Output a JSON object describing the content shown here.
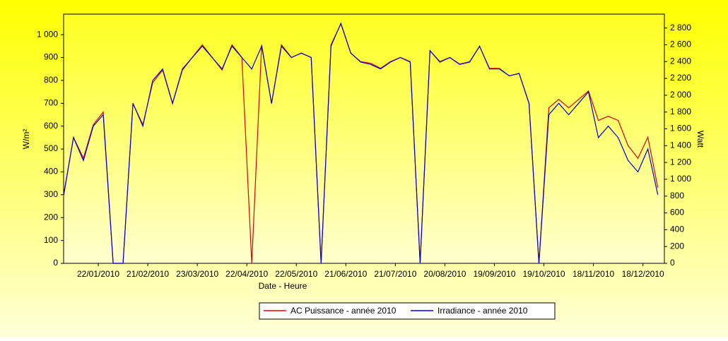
{
  "chart_data": {
    "type": "line",
    "xlabel": "Date - Heure",
    "ylabel": "W/m²",
    "y2label": "Watt",
    "x": [
      "01/01/2010",
      "07/01/2010",
      "13/01/2010",
      "19/01/2010",
      "25/01/2010",
      "31/01/2010",
      "06/02/2010",
      "12/02/2010",
      "18/02/2010",
      "24/02/2010",
      "02/03/2010",
      "08/03/2010",
      "14/03/2010",
      "20/03/2010",
      "26/03/2010",
      "01/04/2010",
      "07/04/2010",
      "13/04/2010",
      "19/04/2010",
      "25/04/2010",
      "01/05/2010",
      "07/05/2010",
      "13/05/2010",
      "19/05/2010",
      "25/05/2010",
      "31/05/2010",
      "06/06/2010",
      "12/06/2010",
      "18/06/2010",
      "24/06/2010",
      "30/06/2010",
      "06/07/2010",
      "12/07/2010",
      "18/07/2010",
      "24/07/2010",
      "30/07/2010",
      "05/08/2010",
      "11/08/2010",
      "17/08/2010",
      "23/08/2010",
      "29/08/2010",
      "04/09/2010",
      "10/09/2010",
      "16/09/2010",
      "22/09/2010",
      "28/09/2010",
      "04/10/2010",
      "10/10/2010",
      "16/10/2010",
      "22/10/2010",
      "28/10/2010",
      "03/11/2010",
      "09/11/2010",
      "15/11/2010",
      "21/11/2010",
      "27/11/2010",
      "03/12/2010",
      "09/12/2010",
      "15/12/2010",
      "21/12/2010",
      "27/12/2010"
    ],
    "series": [
      {
        "name": "AC Puissance - année 2010",
        "color": "#e00000",
        "axis": "y2",
        "values": [
          800,
          1500,
          1250,
          1650,
          1800,
          0,
          0,
          1900,
          1650,
          2150,
          2300,
          1900,
          2300,
          2450,
          2600,
          2450,
          2300,
          2600,
          2450,
          0,
          2600,
          1900,
          2600,
          2450,
          2500,
          2450,
          0,
          2600,
          2850,
          2500,
          2400,
          2380,
          2320,
          2400,
          2450,
          2400,
          0,
          2530,
          2400,
          2450,
          2370,
          2400,
          2580,
          2320,
          2320,
          2230,
          2260,
          1900,
          0,
          1850,
          1950,
          1850,
          1950,
          2050,
          1700,
          1750,
          1700,
          1400,
          1250,
          1500,
          900
        ]
      },
      {
        "name": "Irradiance - année 2010",
        "color": "#0000e0",
        "values": [
          300,
          550,
          450,
          600,
          650,
          0,
          0,
          700,
          600,
          800,
          850,
          700,
          850,
          900,
          950,
          900,
          850,
          950,
          900,
          850,
          950,
          700,
          950,
          900,
          920,
          900,
          0,
          950,
          1050,
          920,
          880,
          870,
          850,
          880,
          900,
          880,
          0,
          930,
          880,
          900,
          870,
          880,
          950,
          850,
          850,
          820,
          830,
          700,
          0,
          650,
          700,
          650,
          700,
          750,
          550,
          600,
          550,
          450,
          400,
          500,
          300
        ]
      }
    ],
    "xlim": [
      "01/01/2010",
      "31/12/2010"
    ],
    "xticks": [
      "22/01/2010",
      "21/02/2010",
      "23/03/2010",
      "22/04/2010",
      "22/05/2010",
      "21/06/2010",
      "21/07/2010",
      "20/08/2010",
      "19/09/2010",
      "19/10/2010",
      "18/11/2010",
      "18/12/2010"
    ],
    "ylim": [
      0,
      1090
    ],
    "yticks": [
      0,
      100,
      200,
      300,
      400,
      500,
      600,
      700,
      800,
      900,
      {
        "value": 1000,
        "label": "1 000"
      }
    ],
    "y2lim": [
      0,
      2965
    ],
    "y2ticks": [
      0,
      200,
      400,
      600,
      800,
      {
        "value": 1000,
        "label": "1 000"
      },
      {
        "value": 1200,
        "label": "1 200"
      },
      {
        "value": 1400,
        "label": "1 400"
      },
      {
        "value": 1600,
        "label": "1 600"
      },
      {
        "value": 1800,
        "label": "1 800"
      },
      {
        "value": 2000,
        "label": "2 000"
      },
      {
        "value": 2200,
        "label": "2 200"
      },
      {
        "value": 2400,
        "label": "2 400"
      },
      {
        "value": 2600,
        "label": "2 600"
      },
      {
        "value": 2800,
        "label": "2 800"
      }
    ],
    "legend": "bottom"
  }
}
